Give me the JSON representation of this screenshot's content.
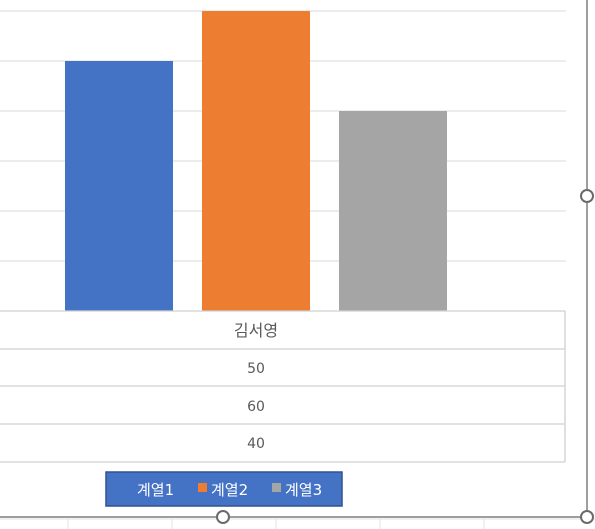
{
  "colors": {
    "series1": "#4472c4",
    "series2": "#ed7d31",
    "series3": "#a5a5a5",
    "legend_bg": "#4472c4",
    "legend_border": "#2f528f"
  },
  "chart_data": {
    "type": "bar",
    "categories": [
      "김서영"
    ],
    "series": [
      {
        "name": "계열1",
        "values": [
          50
        ]
      },
      {
        "name": "계열2",
        "values": [
          60
        ]
      },
      {
        "name": "계열3",
        "values": [
          40
        ]
      }
    ],
    "ylim": [
      0,
      60
    ],
    "grid": true,
    "legend_position": "bottom",
    "data_table": {
      "header": "김서영",
      "rows": [
        "50",
        "60",
        "40"
      ]
    }
  },
  "legend": {
    "items": [
      {
        "label": "계열1"
      },
      {
        "label": "계열2"
      },
      {
        "label": "계열3"
      }
    ]
  }
}
